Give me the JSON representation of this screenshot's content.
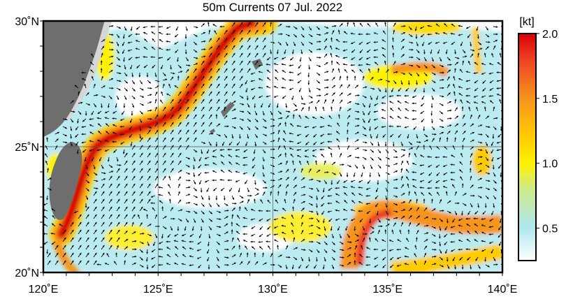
{
  "title": "50m Currents  07 Jul. 2022",
  "map": {
    "lon_range": [
      120,
      140
    ],
    "lat_range": [
      20,
      30
    ],
    "lon_ticks": [
      "120˚E",
      "125˚E",
      "130˚E",
      "135˚E",
      "140˚E"
    ],
    "lat_ticks": [
      "20˚N",
      "25˚N",
      "30˚N"
    ],
    "grid": true,
    "land_color": "#6e6e6e",
    "shelf_color": "#d6d6d6",
    "ocean_color": "#ffffff",
    "arrow_color": "#000000"
  },
  "colorbar": {
    "unit_label": "[kt]",
    "ticks": [
      "2.0",
      "1.5",
      "1.0",
      "0.5"
    ],
    "range": [
      0.25,
      2.0
    ],
    "stops": [
      {
        "value": 0.25,
        "color": "#ffffff"
      },
      {
        "value": 0.5,
        "color": "#aee8ee"
      },
      {
        "value": 0.8,
        "color": "#cdeb8a"
      },
      {
        "value": 1.0,
        "color": "#fff200"
      },
      {
        "value": 1.2,
        "color": "#ffcc00"
      },
      {
        "value": 1.5,
        "color": "#f7941d"
      },
      {
        "value": 1.8,
        "color": "#ef4123"
      },
      {
        "value": 2.0,
        "color": "#d70000"
      }
    ]
  }
}
